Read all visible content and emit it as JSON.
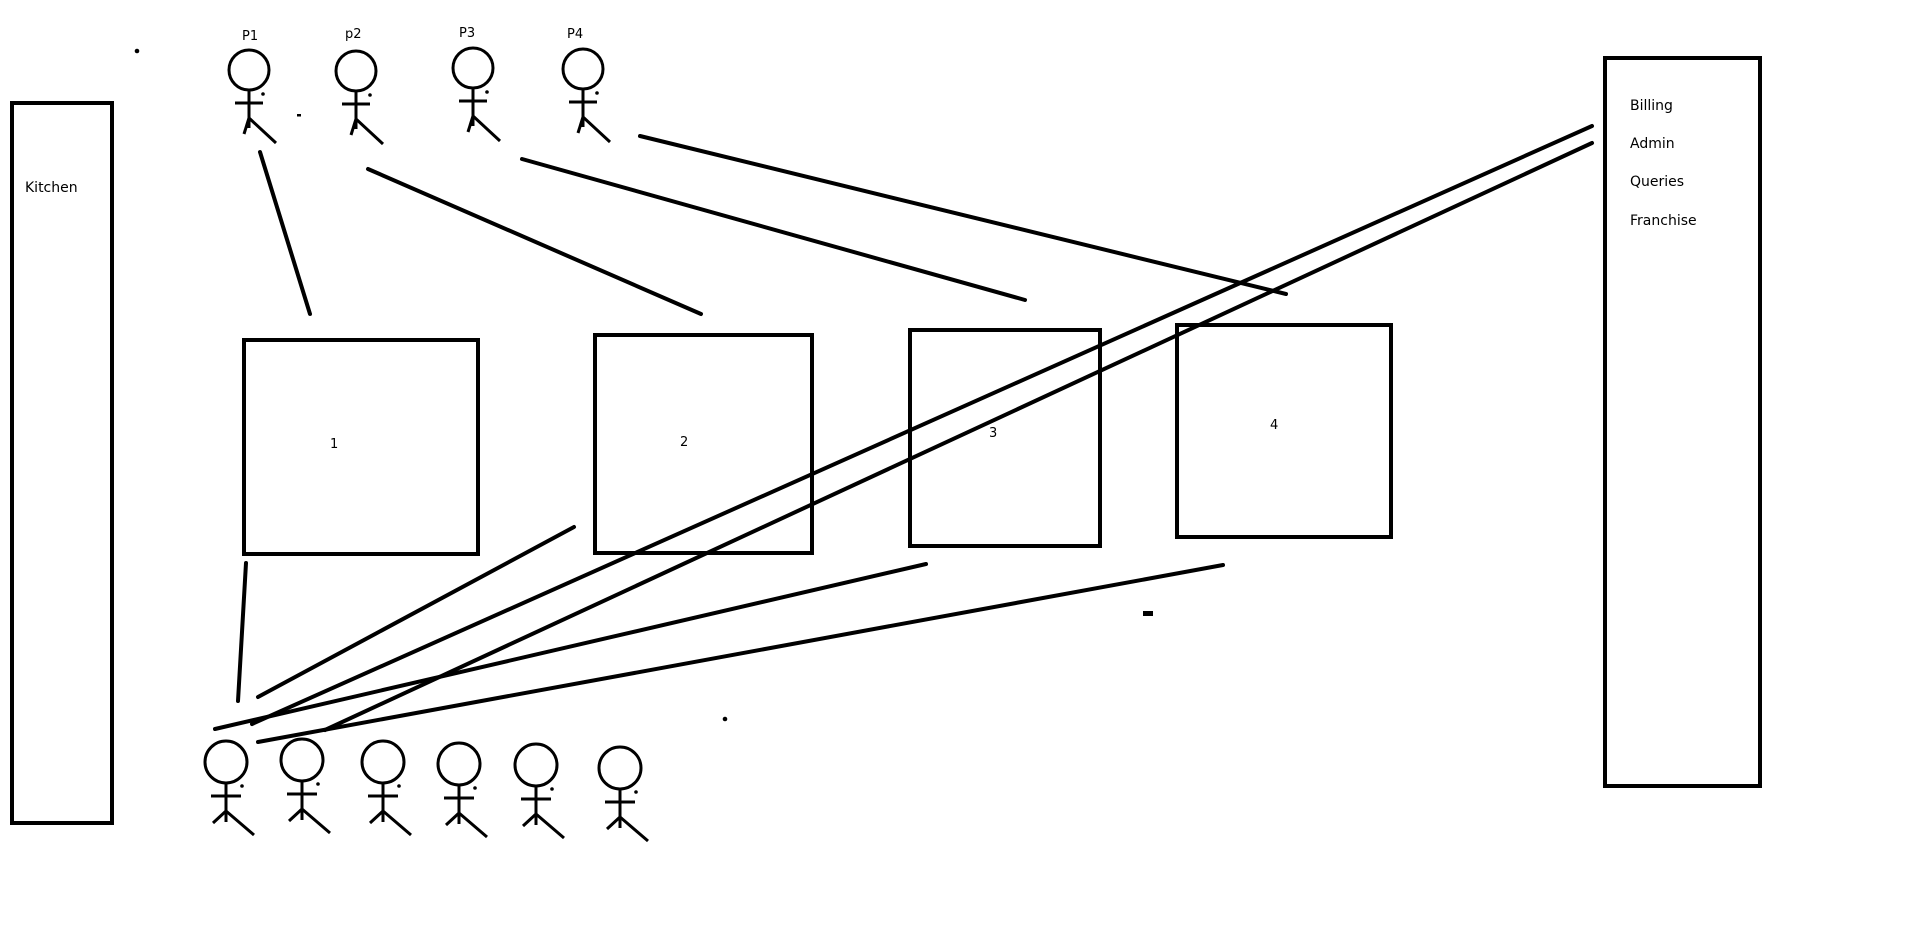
{
  "kitchen": {
    "label": "Kitchen"
  },
  "office": {
    "items": [
      "Billing",
      "Admin",
      "Queries",
      "Franchise"
    ]
  },
  "tables": [
    {
      "label": "1"
    },
    {
      "label": "2"
    },
    {
      "label": "3"
    },
    {
      "label": "4"
    }
  ],
  "staff": [
    {
      "label": "P1"
    },
    {
      "label": "p2"
    },
    {
      "label": "P3"
    },
    {
      "label": "P4"
    }
  ],
  "customers": {
    "count": 6
  },
  "colors": {
    "stroke": "#000000",
    "background": "#ffffff"
  }
}
